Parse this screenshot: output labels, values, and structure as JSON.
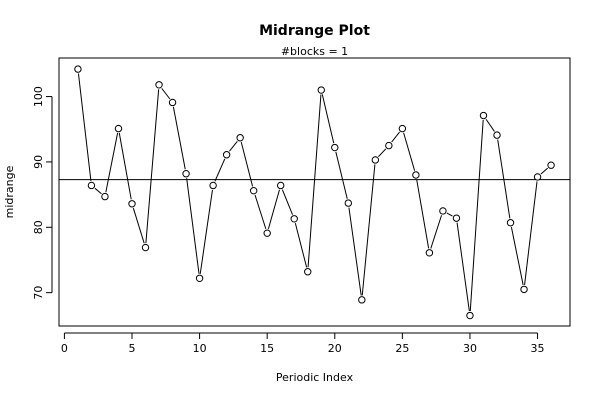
{
  "chart_data": {
    "type": "line",
    "title": "Midrange Plot",
    "subtitle": "#blocks =  1",
    "xlabel": "Periodic Index",
    "ylabel": "midrange",
    "xlim": [
      -0.4,
      37.4
    ],
    "ylim": [
      64.9,
      105.9
    ],
    "x_ticks": [
      0,
      5,
      10,
      15,
      20,
      25,
      30,
      35
    ],
    "y_ticks": [
      70,
      80,
      90,
      100
    ],
    "hline": 87.3,
    "grid": false,
    "marker": "open-circle",
    "x": [
      1,
      2,
      3,
      4,
      5,
      6,
      7,
      8,
      9,
      10,
      11,
      12,
      13,
      14,
      15,
      16,
      17,
      18,
      19,
      20,
      21,
      22,
      23,
      24,
      25,
      26,
      27,
      28,
      29,
      30,
      31,
      32,
      33,
      34,
      35,
      36
    ],
    "values": [
      104.2,
      86.4,
      84.7,
      95.1,
      83.6,
      76.9,
      101.8,
      99.1,
      88.2,
      72.2,
      86.4,
      91.1,
      93.7,
      85.6,
      79.1,
      86.4,
      81.3,
      73.2,
      101.0,
      92.2,
      83.7,
      68.9,
      90.3,
      92.5,
      95.1,
      88.0,
      76.1,
      82.5,
      81.4,
      66.5,
      97.1,
      94.1,
      80.7,
      70.5,
      87.7,
      89.5
    ]
  }
}
